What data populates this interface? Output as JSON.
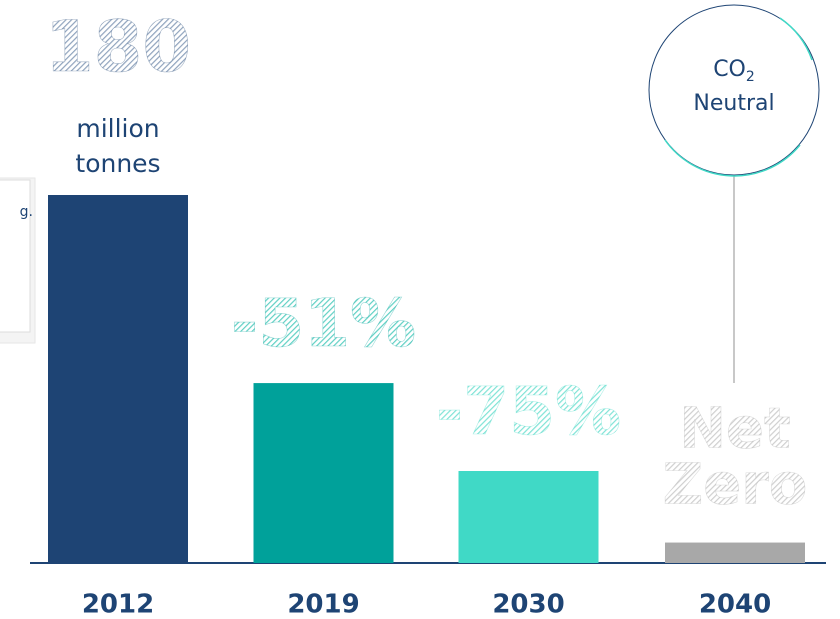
{
  "chart_data": {
    "type": "bar",
    "categories": [
      "2012",
      "2019",
      "2030",
      "2040"
    ],
    "values": [
      180,
      88,
      45,
      10
    ],
    "colors": [
      "#1e4474",
      "#00a19a",
      "#40d9c6",
      "#a8a8a8"
    ],
    "unit": "million tonnes",
    "reduction_labels": [
      null,
      "-51%",
      "-75%",
      "Net Zero"
    ],
    "badge": {
      "text": "CO",
      "sub": "2",
      "line2": "Neutral"
    },
    "note_fragment": "g."
  }
}
